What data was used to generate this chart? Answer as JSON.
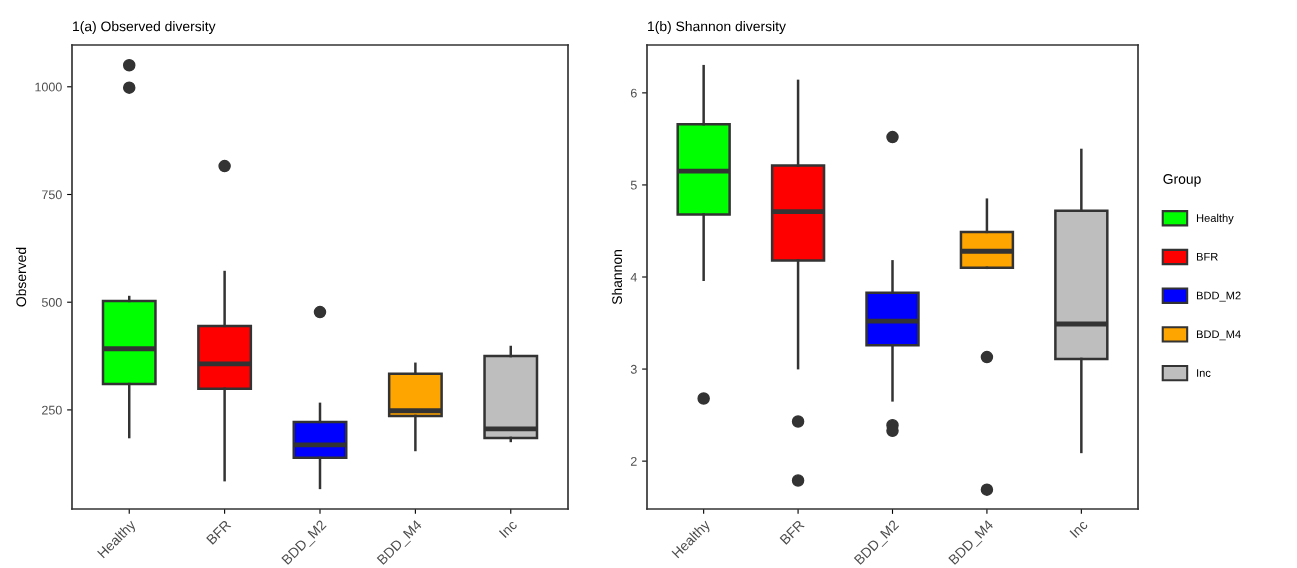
{
  "chart_data": [
    {
      "type": "box",
      "title": "1(a) Observed diversity",
      "ylabel": "Observed",
      "categories": [
        "Healthy",
        "BFR",
        "BDD_M2",
        "BDD_M4",
        "Inc"
      ],
      "colors": [
        "#00ff00",
        "#ff0000",
        "#0000ff",
        "#ffa500",
        "#bebebe"
      ],
      "boxes": [
        {
          "low": 187,
          "q1": 310,
          "median": 392,
          "q3": 503,
          "high": 512,
          "outliers": [
            998,
            1050
          ]
        },
        {
          "low": 87,
          "q1": 299,
          "median": 357,
          "q3": 445,
          "high": 570,
          "outliers": [
            816
          ]
        },
        {
          "low": 69,
          "q1": 139,
          "median": 169,
          "q3": 222,
          "high": 264,
          "outliers": [
            477
          ]
        },
        {
          "low": 157,
          "q1": 236,
          "median": 248,
          "q3": 334,
          "high": 357
        },
        {
          "low": 178,
          "q1": 185,
          "median": 206,
          "q3": 375,
          "high": 396
        }
      ],
      "ylim": [
        20,
        1097
      ],
      "yticks": [
        250,
        500,
        750,
        1000
      ]
    },
    {
      "type": "box",
      "title": "1(b) Shannon diversity",
      "ylabel": "Shannon",
      "legend_title": "Group",
      "categories": [
        "Healthy",
        "BFR",
        "BDD_M2",
        "BDD_M4",
        "Inc"
      ],
      "series": [
        {
          "name": "Healthy",
          "color": "#00ff00",
          "boxes": [
            {
              "low": 3.97,
              "q1": 4.68,
              "median": 5.15,
              "q3": 5.66,
              "high": 6.29,
              "outliers": [
                2.68
              ]
            },
            null,
            null,
            null,
            null
          ]
        },
        {
          "name": "BFR",
          "color": "#ff0000",
          "boxes": [
            null,
            {
              "low": 3.01,
              "q1": 4.18,
              "median": 4.71,
              "q3": 5.21,
              "high": 6.13,
              "outliers": [
                2.43,
                1.79
              ]
            },
            null,
            null,
            null
          ]
        },
        {
          "name": "BDD_M2",
          "color": "#0000ff",
          "boxes": [
            null,
            null,
            {
              "low": 2.66,
              "q1": 3.26,
              "median": 3.52,
              "q3": 3.83,
              "high": 4.17,
              "outliers": [
                5.52,
                2.39,
                2.33
              ]
            },
            null,
            null
          ]
        },
        {
          "name": "BDD_M4",
          "color": "#ffa500",
          "boxes": [
            null,
            null,
            null,
            {
              "low": 4.1,
              "q1": 4.1,
              "median": 4.28,
              "q3": 4.49,
              "high": 4.84,
              "outliers": [
                3.13,
                1.69
              ]
            },
            null
          ]
        },
        {
          "name": "Inc",
          "color": "#bebebe",
          "boxes": [
            null,
            null,
            null,
            null,
            {
              "low": 2.1,
              "q1": 3.11,
              "median": 3.49,
              "q3": 4.72,
              "high": 5.38
            }
          ]
        }
      ],
      "ylim": [
        1.48,
        6.52
      ],
      "yticks": [
        2,
        3,
        4,
        5,
        6
      ],
      "legend": "right"
    }
  ]
}
